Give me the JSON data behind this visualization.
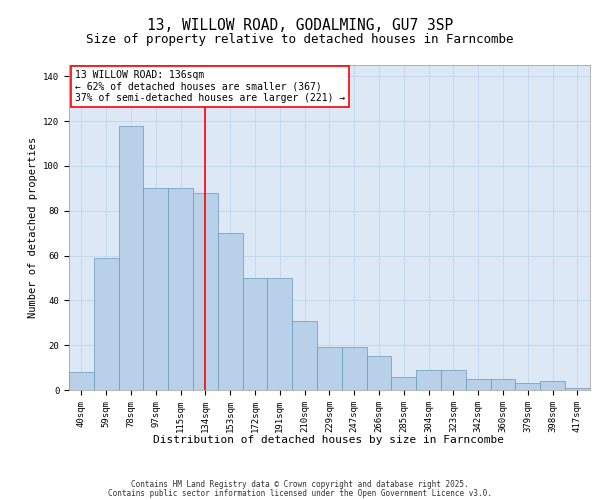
{
  "title": "13, WILLOW ROAD, GODALMING, GU7 3SP",
  "subtitle": "Size of property relative to detached houses in Farncombe",
  "xlabel": "Distribution of detached houses by size in Farncombe",
  "ylabel": "Number of detached properties",
  "categories": [
    "40sqm",
    "59sqm",
    "78sqm",
    "97sqm",
    "115sqm",
    "134sqm",
    "153sqm",
    "172sqm",
    "191sqm",
    "210sqm",
    "229sqm",
    "247sqm",
    "266sqm",
    "285sqm",
    "304sqm",
    "323sqm",
    "342sqm",
    "360sqm",
    "379sqm",
    "398sqm",
    "417sqm"
  ],
  "values": [
    8,
    59,
    118,
    90,
    90,
    88,
    70,
    50,
    50,
    31,
    19,
    19,
    15,
    6,
    9,
    9,
    5,
    5,
    3,
    4,
    1
  ],
  "bar_color": "#b8d0e8",
  "bar_edge_color": "#6699bb",
  "vline_index": 5,
  "vline_color": "red",
  "annotation_line1": "13 WILLOW ROAD: 136sqm",
  "annotation_line2": "← 62% of detached houses are smaller (367)",
  "annotation_line3": "37% of semi-detached houses are larger (221) →",
  "annotation_box_facecolor": "white",
  "annotation_box_edgecolor": "red",
  "ylim_max": 145,
  "yticks": [
    0,
    20,
    40,
    60,
    80,
    100,
    120,
    140
  ],
  "grid_color": "#c5d8ea",
  "plot_bg_color": "#dce8f5",
  "footer_line1": "Contains HM Land Registry data © Crown copyright and database right 2025.",
  "footer_line2": "Contains public sector information licensed under the Open Government Licence v3.0.",
  "title_fontsize": 10.5,
  "subtitle_fontsize": 9,
  "xlabel_fontsize": 8,
  "ylabel_fontsize": 7.5,
  "tick_fontsize": 6.5,
  "annotation_fontsize": 7,
  "footer_fontsize": 5.5
}
